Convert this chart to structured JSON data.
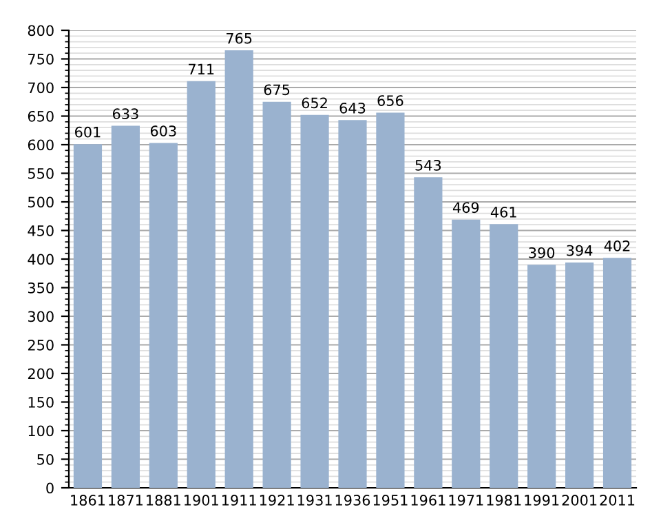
{
  "chart_data": {
    "type": "bar",
    "categories": [
      "1861",
      "1871",
      "1881",
      "1901",
      "1911",
      "1921",
      "1931",
      "1936",
      "1951",
      "1961",
      "1971",
      "1981",
      "1991",
      "2001",
      "2011"
    ],
    "values": [
      601,
      633,
      603,
      711,
      765,
      675,
      652,
      643,
      656,
      543,
      469,
      461,
      390,
      394,
      402
    ],
    "color": "#9ab2cf",
    "ylim": [
      0,
      800
    ],
    "yticks": [
      0,
      50,
      100,
      150,
      200,
      250,
      300,
      350,
      400,
      450,
      500,
      550,
      600,
      650,
      700,
      750,
      800
    ],
    "grid": "y",
    "data_labels": true
  }
}
